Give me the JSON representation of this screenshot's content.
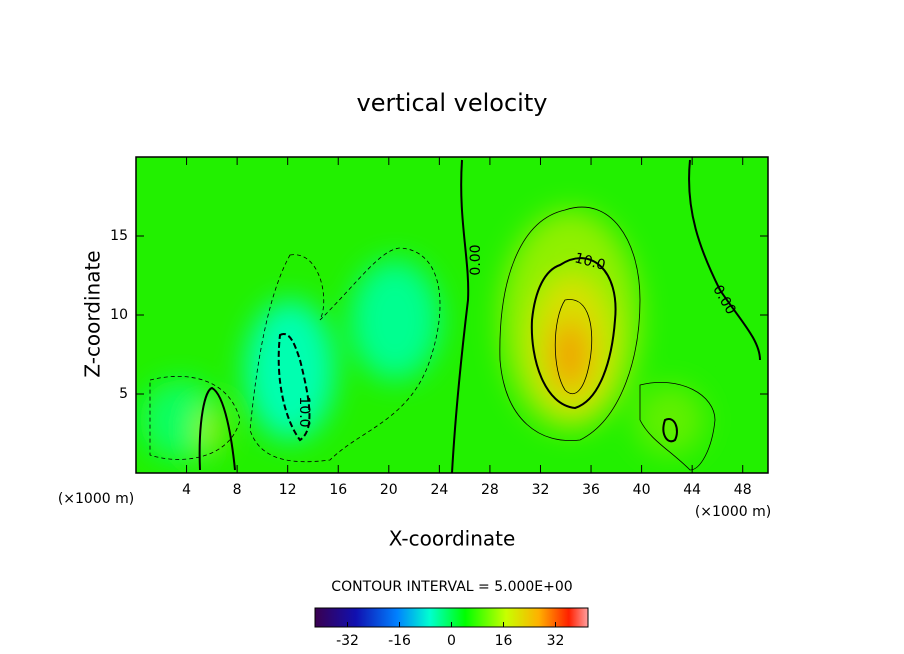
{
  "chart_data": {
    "type": "contour",
    "title": "vertical velocity",
    "x_label": "X-coordinate",
    "y_label": "Z-coordinate",
    "x_unit_label": "(×1000 m)",
    "y_unit_label": "(×1000 m)",
    "xlim": [
      0,
      50
    ],
    "xticks": [
      4,
      8,
      12,
      16,
      20,
      24,
      28,
      32,
      36,
      40,
      44,
      48
    ],
    "ylim": [
      0,
      20
    ],
    "yticks": [
      5,
      10,
      15
    ],
    "contour_labels": [
      "0.00",
      "10.0",
      "0.00",
      "10.0"
    ],
    "colorbar_title": "CONTOUR INTERVAL = 5.000E+00",
    "clim": [
      -42,
      42
    ],
    "colorbar_ticks": [
      -32,
      -16,
      0,
      16,
      32
    ]
  }
}
